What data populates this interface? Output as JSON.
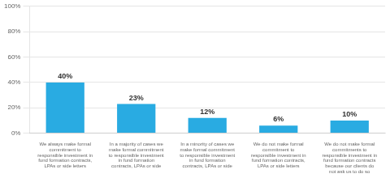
{
  "chart_data": {
    "type": "bar",
    "categories": [
      "We always make formal\ncommitment to\nresponsible investment in\nfund formation contracts,\nLPAs or side letters",
      "In a majority of cases we\nmake formal commitment\nto responsible investment\nin fund formation\ncontracts, LPAs or side",
      "In a minority of cases we\nmake formal commitment\nto responsible investment\nin fund formation\ncontracts, LPAs or side",
      "We do not make formal\ncommitment to\nresponsible investment in\nfund formation contracts,\nLPAs or side letters",
      "We do not make formal\ncommitments to\nresponsible investment in\nfund formation contracts\nbecause our clients do\nnot ask us to do so"
    ],
    "values": [
      40,
      23,
      12,
      6,
      10
    ],
    "value_labels": [
      "40%",
      "23%",
      "12%",
      "6%",
      "10%"
    ],
    "data_labels": true,
    "color": "#29ABE2",
    "ylim": [
      0,
      100
    ],
    "yticks": [
      {
        "value": 0,
        "label": "0%"
      },
      {
        "value": 20,
        "label": "20%"
      },
      {
        "value": 40,
        "label": "40%"
      },
      {
        "value": 60,
        "label": "60%"
      },
      {
        "value": 80,
        "label": "80%"
      },
      {
        "value": 100,
        "label": "100%"
      }
    ],
    "grid": true
  }
}
